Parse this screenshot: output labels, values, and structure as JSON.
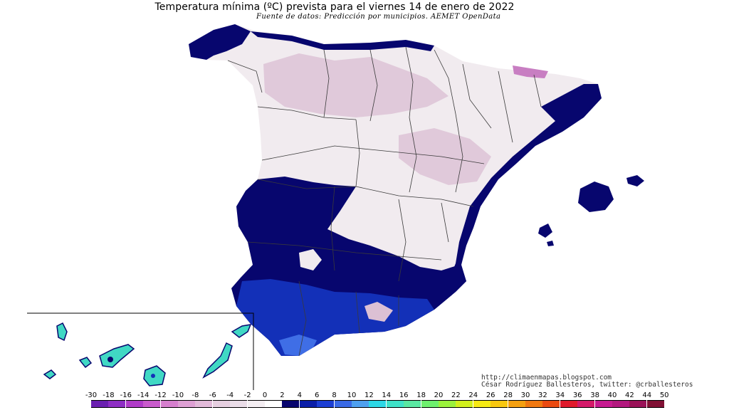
{
  "header": {
    "title": "Temperatura mínima (ºC) prevista para el viernes 14 de enero de 2022",
    "subtitle": "Fuente de datos: Predicción por municipios. AEMET OpenData"
  },
  "credits": {
    "url": "http://climaenmapas.blogspot.com",
    "author": "César Rodríguez Ballesteros, twitter: @crballesteros"
  },
  "legend": {
    "labels": [
      "-30",
      "-18",
      "-16",
      "-14",
      "-12",
      "-10",
      "-8",
      "-6",
      "-4",
      "-2",
      "0",
      "2",
      "4",
      "6",
      "8",
      "10",
      "12",
      "14",
      "16",
      "18",
      "20",
      "22",
      "24",
      "26",
      "28",
      "30",
      "32",
      "34",
      "36",
      "38",
      "40",
      "42",
      "44",
      "50"
    ],
    "colors": [
      "#6a1fb0",
      "#8e2ec4",
      "#b03bc8",
      "#c95bcc",
      "#d67fce",
      "#dea0d4",
      "#e2bad9",
      "#e6cfe0",
      "#eadde8",
      "#f4eef2",
      "#ffffff",
      "#07056e",
      "#0a1ea8",
      "#1c3fd4",
      "#3a6ae6",
      "#4ea0ef",
      "#2dd8e6",
      "#3fe2c8",
      "#5ae8a2",
      "#6ef06e",
      "#9bf23c",
      "#d2f01c",
      "#f6ea14",
      "#f8c810",
      "#f5a010",
      "#f07810",
      "#ea4a10",
      "#e01a2c",
      "#d41a6a",
      "#c61a90",
      "#b2187e",
      "#9a1258",
      "#801034"
    ]
  },
  "map": {
    "colors": {
      "cold_zone": "#f1ebef",
      "freezing_highlands": "#dcc0d4",
      "deep_freeze": "#c87ec2",
      "mild_coast": "#07066e",
      "warm_coast": "#1330b8",
      "warmest_coast": "#3f6ee6",
      "canary_warm": "#40d8c4",
      "border": "#3a3a3a"
    }
  }
}
